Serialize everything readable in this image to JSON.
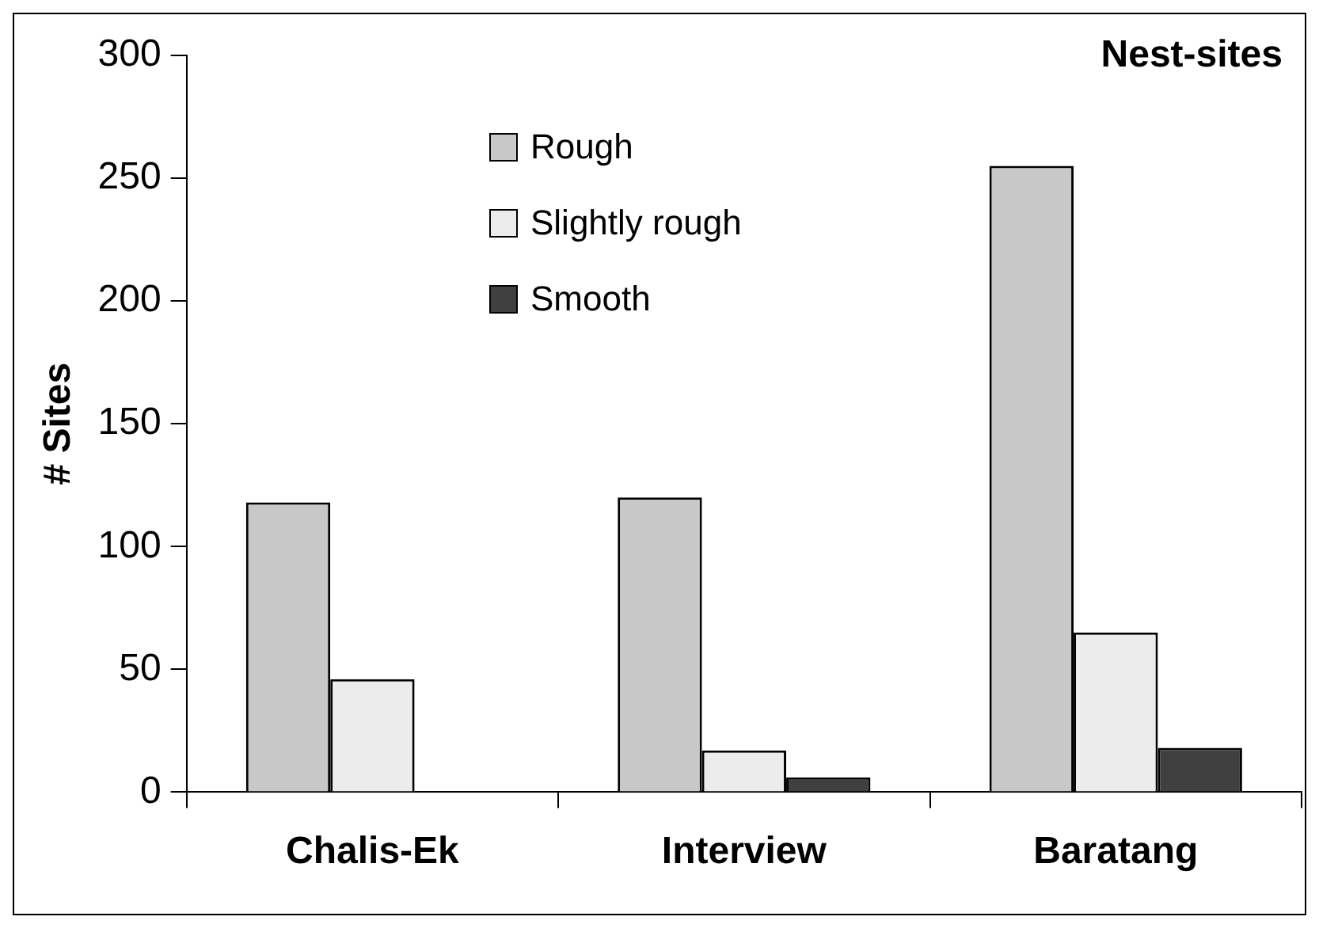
{
  "chart_data": {
    "type": "bar",
    "title": "Nest-sites",
    "ylabel": "# Sites",
    "categories": [
      "Chalis-Ek",
      "Interview",
      "Baratang"
    ],
    "series": [
      {
        "name": "Rough",
        "color": "#c8c8c8",
        "values": [
          118,
          120,
          255
        ]
      },
      {
        "name": "Slightly rough",
        "color": "#ececec",
        "values": [
          46,
          17,
          65
        ]
      },
      {
        "name": "Smooth",
        "color": "#404040",
        "values": [
          0,
          6,
          18
        ]
      }
    ],
    "ylim": [
      0,
      300
    ],
    "yticks": [
      0,
      50,
      100,
      150,
      200,
      250,
      300
    ],
    "grid": false,
    "legend": "top"
  }
}
